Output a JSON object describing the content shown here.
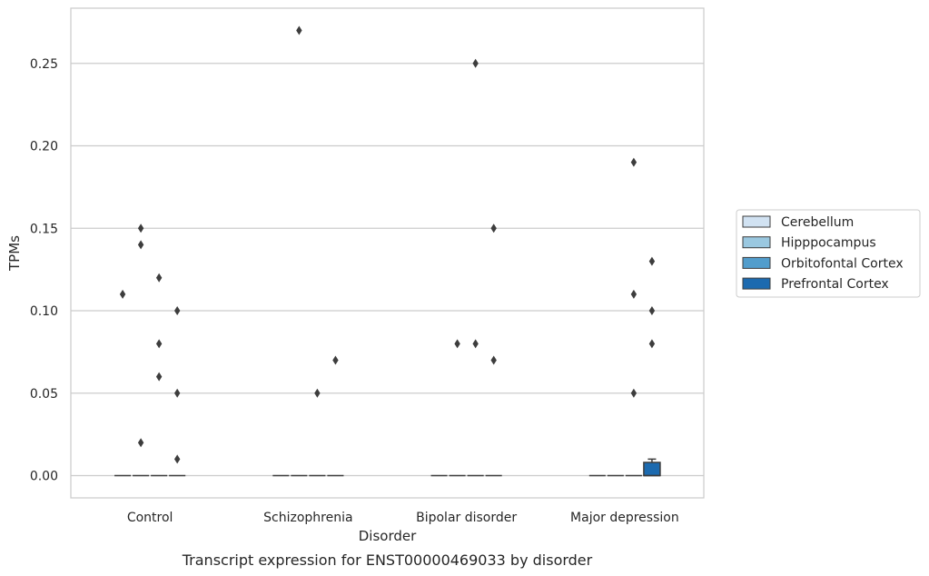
{
  "chart_data": {
    "type": "box",
    "title": "",
    "caption": "Transcript expression for ENST00000469033 by disorder",
    "xlabel": "Disorder",
    "ylabel": "TPMs",
    "ylim": [
      -0.0135,
      0.2835
    ],
    "yticks": [
      0.0,
      0.05,
      0.1,
      0.15,
      0.2,
      0.25
    ],
    "ytick_labels": [
      "0.00",
      "0.05",
      "0.10",
      "0.15",
      "0.20",
      "0.25"
    ],
    "grid": "horizontal",
    "legend_position": "right",
    "categories": [
      "Control",
      "Schizophrenia",
      "Bipolar disorder",
      "Major depression"
    ],
    "series": [
      {
        "name": "Cerebellum",
        "color": "#d1e2f2",
        "boxes": [
          {
            "category": "Control",
            "q1": 0,
            "median": 0,
            "q3": 0,
            "whisker_low": 0,
            "whisker_high": 0,
            "outliers": [
              0.11
            ]
          },
          {
            "category": "Schizophrenia",
            "q1": 0,
            "median": 0,
            "q3": 0,
            "whisker_low": 0,
            "whisker_high": 0,
            "outliers": []
          },
          {
            "category": "Bipolar disorder",
            "q1": 0,
            "median": 0,
            "q3": 0,
            "whisker_low": 0,
            "whisker_high": 0,
            "outliers": []
          },
          {
            "category": "Major depression",
            "q1": 0,
            "median": 0,
            "q3": 0,
            "whisker_low": 0,
            "whisker_high": 0,
            "outliers": []
          }
        ]
      },
      {
        "name": "Hipppocampus",
        "color": "#9ac8e0",
        "boxes": [
          {
            "category": "Control",
            "q1": 0,
            "median": 0,
            "q3": 0,
            "whisker_low": 0,
            "whisker_high": 0,
            "outliers": [
              0.15,
              0.14,
              0.02
            ]
          },
          {
            "category": "Schizophrenia",
            "q1": 0,
            "median": 0,
            "q3": 0,
            "whisker_low": 0,
            "whisker_high": 0,
            "outliers": [
              0.27
            ]
          },
          {
            "category": "Bipolar disorder",
            "q1": 0,
            "median": 0,
            "q3": 0,
            "whisker_low": 0,
            "whisker_high": 0,
            "outliers": [
              0.08
            ]
          },
          {
            "category": "Major depression",
            "q1": 0,
            "median": 0,
            "q3": 0,
            "whisker_low": 0,
            "whisker_high": 0,
            "outliers": []
          }
        ]
      },
      {
        "name": "Orbitofontal Cortex",
        "color": "#529dcc",
        "boxes": [
          {
            "category": "Control",
            "q1": 0,
            "median": 0,
            "q3": 0,
            "whisker_low": 0,
            "whisker_high": 0,
            "outliers": [
              0.12,
              0.08,
              0.06
            ]
          },
          {
            "category": "Schizophrenia",
            "q1": 0,
            "median": 0,
            "q3": 0,
            "whisker_low": 0,
            "whisker_high": 0,
            "outliers": [
              0.05
            ]
          },
          {
            "category": "Bipolar disorder",
            "q1": 0,
            "median": 0,
            "q3": 0,
            "whisker_low": 0,
            "whisker_high": 0,
            "outliers": [
              0.25,
              0.08
            ]
          },
          {
            "category": "Major depression",
            "q1": 0,
            "median": 0,
            "q3": 0,
            "whisker_low": 0,
            "whisker_high": 0,
            "outliers": [
              0.19,
              0.11,
              0.05
            ]
          }
        ]
      },
      {
        "name": "Prefrontal Cortex",
        "color": "#1c6aaf",
        "boxes": [
          {
            "category": "Control",
            "q1": 0,
            "median": 0,
            "q3": 0,
            "whisker_low": 0,
            "whisker_high": 0,
            "outliers": [
              0.1,
              0.05,
              0.01
            ]
          },
          {
            "category": "Schizophrenia",
            "q1": 0,
            "median": 0,
            "q3": 0,
            "whisker_low": 0,
            "whisker_high": 0,
            "outliers": [
              0.07
            ]
          },
          {
            "category": "Bipolar disorder",
            "q1": 0,
            "median": 0,
            "q3": 0,
            "whisker_low": 0,
            "whisker_high": 0,
            "outliers": [
              0.15,
              0.07
            ]
          },
          {
            "category": "Major depression",
            "q1": 0,
            "median": 0,
            "q3": 0.008,
            "whisker_low": 0,
            "whisker_high": 0.01,
            "outliers": [
              0.13,
              0.1,
              0.08
            ]
          }
        ]
      }
    ]
  }
}
